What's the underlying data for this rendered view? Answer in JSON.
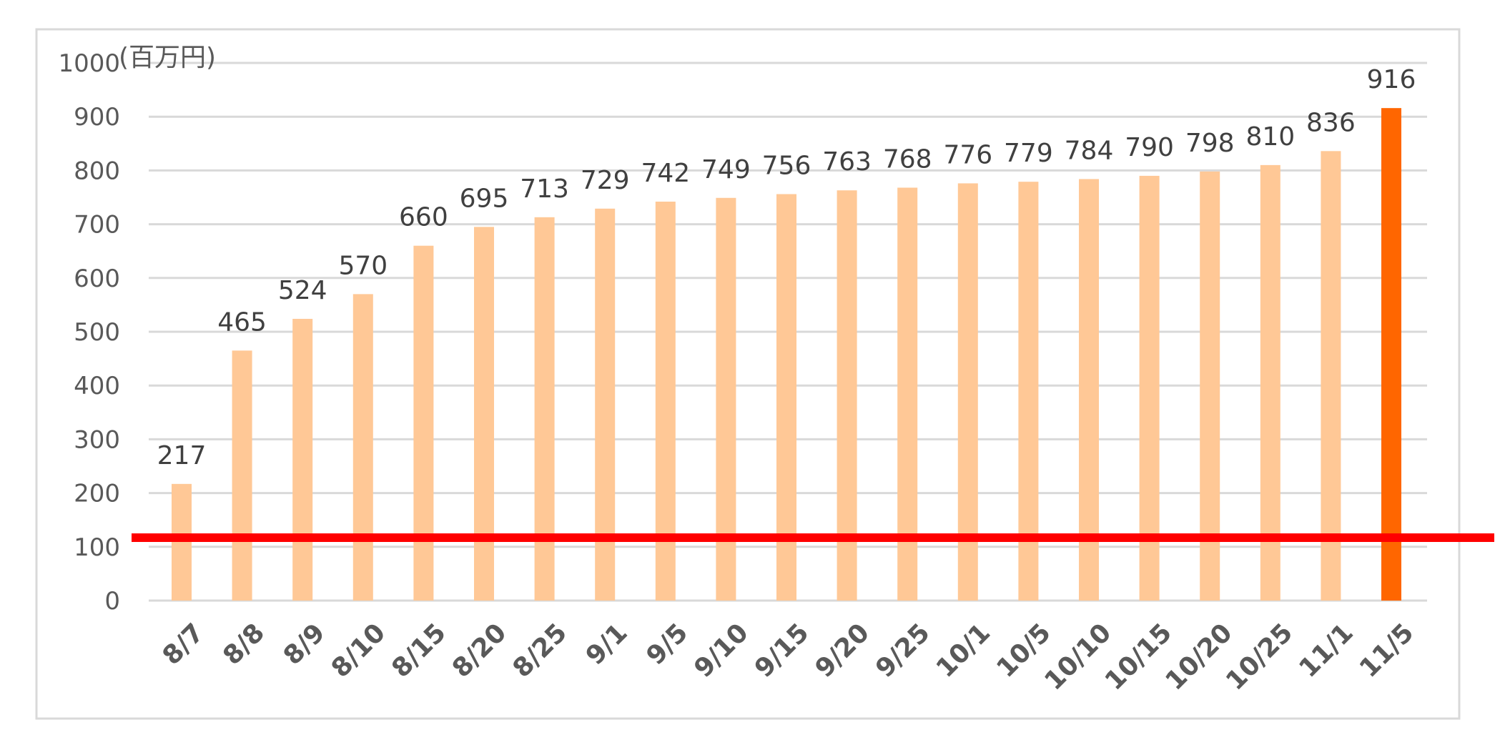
{
  "chart_data": {
    "type": "bar",
    "ylabel": "(百万円)",
    "ylim": [
      0,
      1000
    ],
    "yticks": [
      0,
      100,
      200,
      300,
      400,
      500,
      600,
      700,
      800,
      900,
      1000
    ],
    "grid": true,
    "legend": "none",
    "categories": [
      "8/7",
      "8/8",
      "8/9",
      "8/10",
      "8/15",
      "8/20",
      "8/25",
      "9/1",
      "9/5",
      "9/10",
      "9/15",
      "9/20",
      "9/25",
      "10/1",
      "10/5",
      "10/10",
      "10/15",
      "10/20",
      "10/25",
      "11/1",
      "11/5"
    ],
    "values": [
      217,
      465,
      524,
      570,
      660,
      695,
      713,
      729,
      742,
      749,
      756,
      763,
      768,
      776,
      779,
      784,
      790,
      798,
      810,
      836,
      916
    ],
    "data_labels": [
      "217",
      "465",
      "524",
      "570",
      "660",
      "695",
      "713",
      "729",
      "742",
      "749",
      "756",
      "763",
      "768",
      "776",
      "779",
      "784",
      "790",
      "798",
      "810",
      "836",
      "916"
    ],
    "highlight_index": 20,
    "reference_line": {
      "value": 117,
      "color": "#ff0000"
    },
    "colors": {
      "bar": "#ffc896",
      "highlight_bar": "#ff6600",
      "grid": "#d9d9d9",
      "axis_text": "#595959",
      "label_text": "#404040",
      "border": "#d9d9d9"
    }
  }
}
